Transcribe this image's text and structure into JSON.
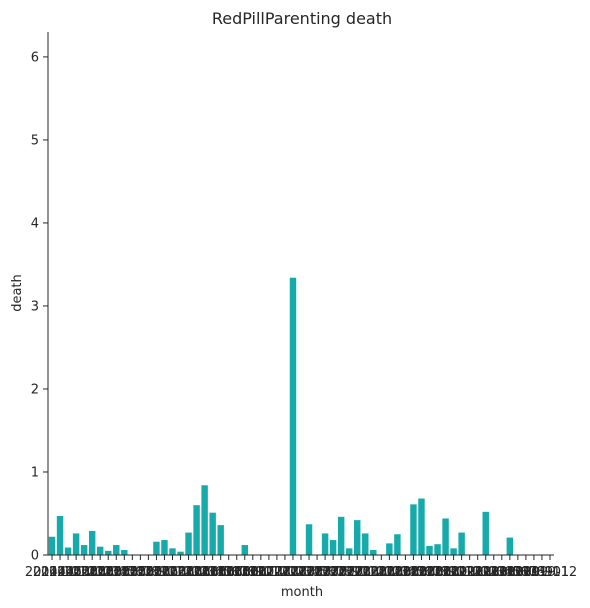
{
  "chart_data": {
    "type": "bar",
    "title": "RedPillParenting death",
    "xlabel": "month",
    "ylabel": "death",
    "ylim": [
      0,
      6.3
    ],
    "yticks": [
      0,
      1,
      2,
      3,
      4,
      5,
      6
    ],
    "color": "#17aaaa",
    "first_x_tick_label": "2014-10",
    "last_x_tick_label": "2019-12",
    "x_ticklabels_overlap": true,
    "grid": false,
    "legend": "none",
    "categories": [
      "2014-10",
      "2014-11",
      "2014-12",
      "2015-01",
      "2015-02",
      "2015-03",
      "2015-04",
      "2015-05",
      "2015-06",
      "2015-07",
      "2015-08",
      "2015-09",
      "2015-10",
      "2015-11",
      "2015-12",
      "2016-01",
      "2016-02",
      "2016-03",
      "2016-04",
      "2016-05",
      "2016-06",
      "2016-07",
      "2016-08",
      "2016-09",
      "2016-10",
      "2016-11",
      "2016-12",
      "2017-01",
      "2017-02",
      "2017-03",
      "2017-04",
      "2017-05",
      "2017-06",
      "2017-07",
      "2017-08",
      "2017-09",
      "2017-10",
      "2017-11",
      "2017-12",
      "2018-01",
      "2018-02",
      "2018-03",
      "2018-04",
      "2018-05",
      "2018-06",
      "2018-07",
      "2018-08",
      "2018-09",
      "2018-10",
      "2018-11",
      "2018-12",
      "2019-01",
      "2019-02",
      "2019-03",
      "2019-04",
      "2019-05",
      "2019-06",
      "2019-07",
      "2019-08",
      "2019-09",
      "2019-10",
      "2019-11",
      "2019-12"
    ],
    "values": [
      0.22,
      0.47,
      0.09,
      0.26,
      0.12,
      0.29,
      0.1,
      0.05,
      0.12,
      0.06,
      0,
      0,
      0,
      0.16,
      0.18,
      0.08,
      0.04,
      0.27,
      0.6,
      0.84,
      0.51,
      0.36,
      0,
      0,
      0.12,
      0,
      0,
      0,
      0,
      0,
      3.34,
      0,
      0.37,
      0,
      0.26,
      0.18,
      0.46,
      0.08,
      0.42,
      0.26,
      0.06,
      0,
      0.14,
      0.25,
      0,
      0.61,
      0.68,
      0.11,
      0.13,
      0.44,
      0.08,
      0.27,
      0,
      0,
      0.52,
      0,
      0,
      0.21,
      0,
      0,
      0,
      0,
      0
    ]
  }
}
